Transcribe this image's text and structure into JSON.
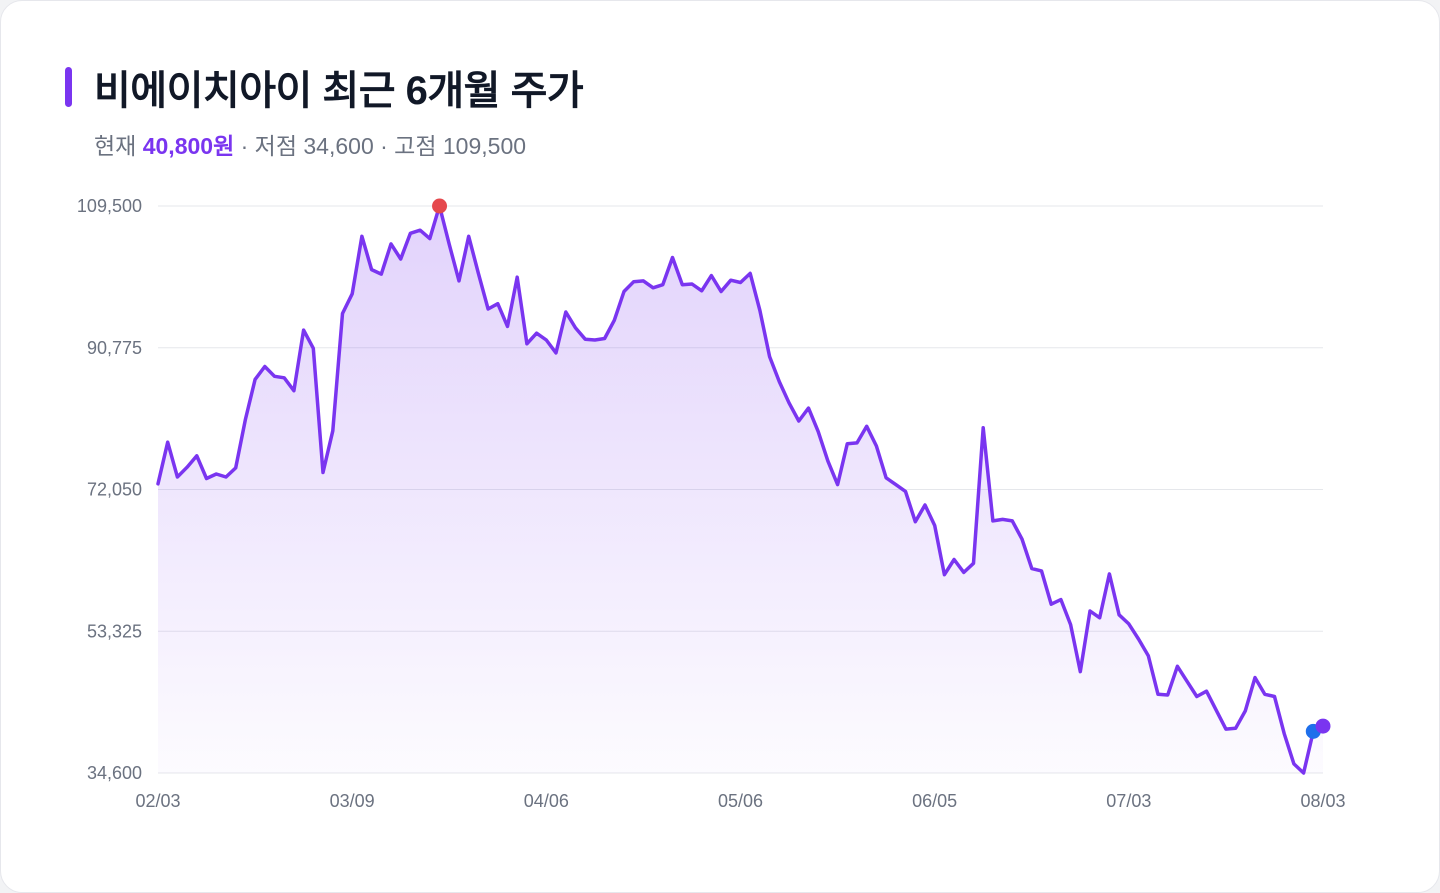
{
  "header": {
    "title": "비에이치아이 최근 6개월 주가",
    "current_label": "현재",
    "current_value": "40,800원",
    "low_text": "· 저점 34,600",
    "high_text": "· 고점 109,500"
  },
  "colors": {
    "accent": "#7a35f0",
    "high_marker": "#e5484d",
    "low_marker": "#1f6feb",
    "grid": "#e5e7eb"
  },
  "chart_data": {
    "type": "area",
    "title": "비에이치아이 최근 6개월 주가",
    "xlabel": "",
    "ylabel": "",
    "ylim": [
      34600,
      109500
    ],
    "y_ticks": [
      109500,
      90775,
      72050,
      53325,
      34600
    ],
    "y_tick_labels": [
      "109,500",
      "90,775",
      "72,050",
      "53,325",
      "34,600"
    ],
    "x_tick_labels": [
      "02/03",
      "03/09",
      "04/06",
      "05/06",
      "06/05",
      "07/03",
      "08/03"
    ],
    "x_tick_positions": [
      0,
      20,
      40,
      60,
      80,
      100,
      120
    ],
    "grid": true,
    "legend": "none",
    "markers": {
      "high_index": 29,
      "low_index": 119,
      "current_index": 120
    },
    "values": [
      72800,
      78300,
      73700,
      75000,
      76500,
      73500,
      74100,
      73700,
      74900,
      81300,
      86600,
      88300,
      87000,
      86800,
      85100,
      93100,
      90700,
      74300,
      79800,
      95300,
      97900,
      105500,
      101100,
      100500,
      104500,
      102500,
      105900,
      106300,
      105200,
      109500,
      104400,
      99600,
      105500,
      100600,
      95900,
      96600,
      93600,
      100100,
      91300,
      92700,
      91800,
      90100,
      95500,
      93400,
      91900,
      91800,
      92000,
      94400,
      98200,
      99500,
      99600,
      98700,
      99100,
      102700,
      99100,
      99200,
      98300,
      100300,
      98200,
      99700,
      99400,
      100600,
      95700,
      89600,
      86300,
      83500,
      81100,
      82800,
      79700,
      75800,
      72700,
      78100,
      78200,
      80400,
      77800,
      73600,
      72700,
      71800,
      67800,
      70000,
      67300,
      60800,
      62800,
      61100,
      62300,
      80200,
      67900,
      68100,
      67900,
      65500,
      61600,
      61300,
      56900,
      57500,
      54200,
      48000,
      56000,
      55100,
      60900,
      55500,
      54300,
      52300,
      50100,
      45000,
      44900,
      48700,
      46700,
      44700,
      45400,
      42900,
      40400,
      40500,
      42800,
      47200,
      45000,
      44700,
      39800,
      35800,
      34600,
      40100,
      40800
    ]
  }
}
